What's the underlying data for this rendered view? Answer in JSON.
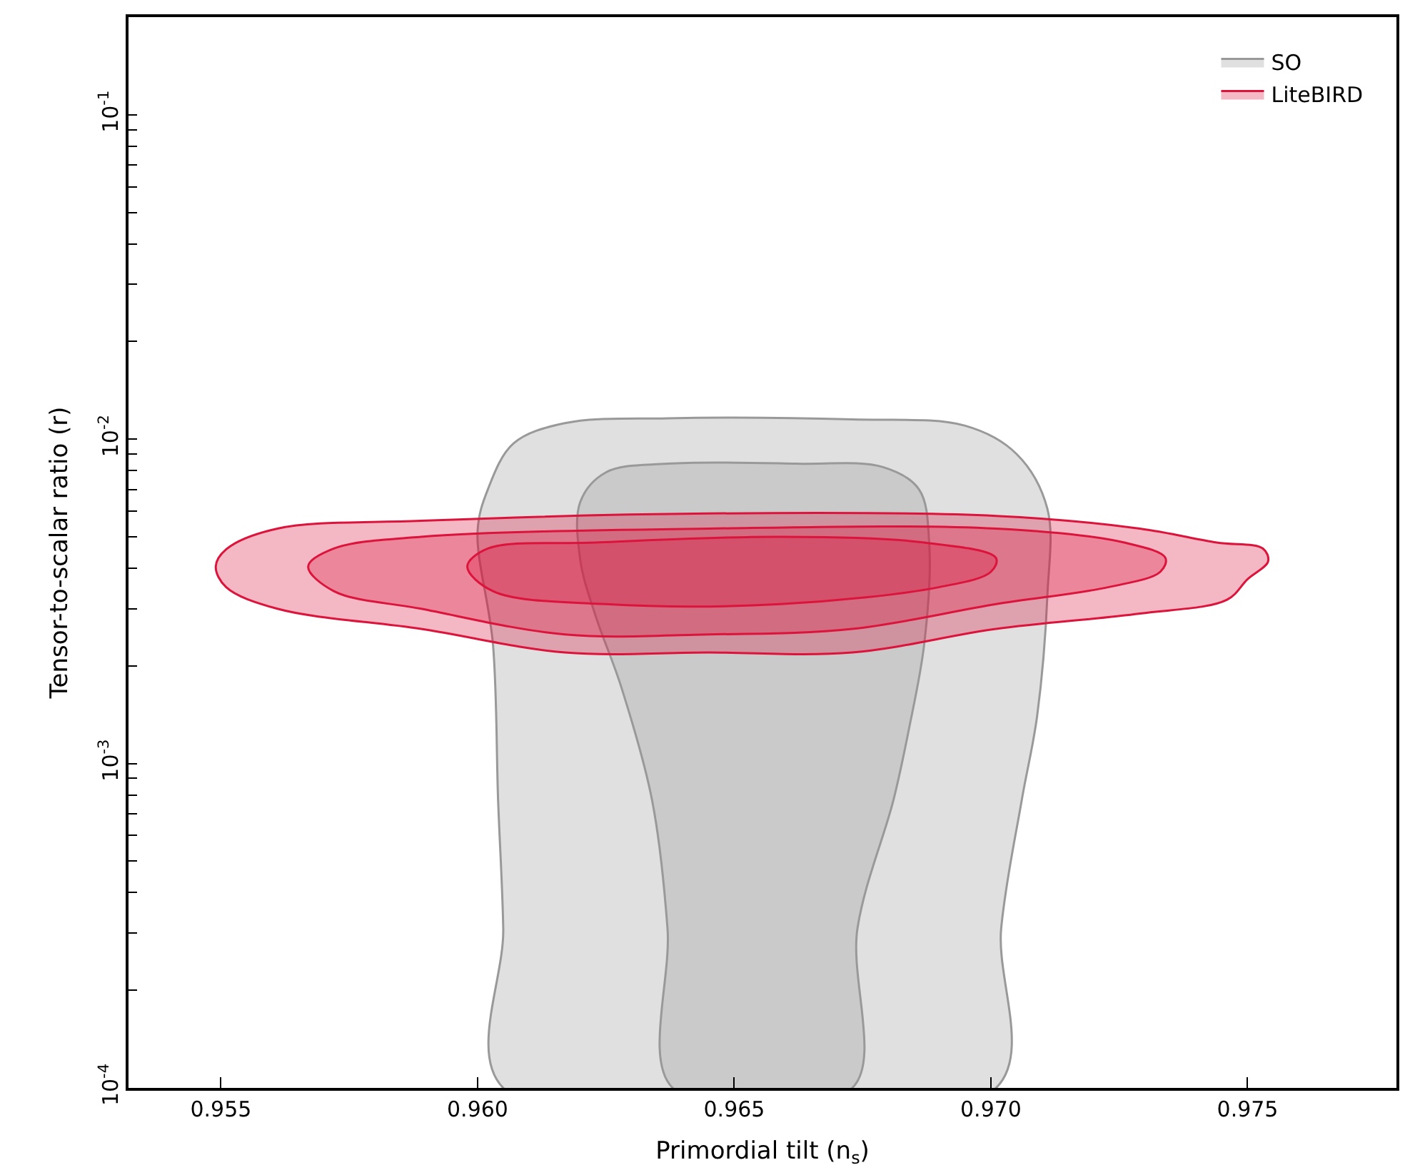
{
  "chart_data": {
    "type": "area",
    "xlabel": "Primordial tilt (n$_{s}$)",
    "ylabel": "Tensor-to-scalar ratio (r)",
    "log": "y",
    "legend": "top right",
    "xlim": [
      0.9532,
      0.9779
    ],
    "xticks": [
      0.955,
      {
        "value": 0.96,
        "label": "0.960"
      },
      0.965,
      {
        "value": 0.97,
        "label": "0.970"
      },
      0.975
    ],
    "ylim": [
      0.0001,
      0.2
    ],
    "yticks": [
      {
        "value": 0.0001,
        "label": "10$^{-4}$"
      },
      {
        "value": 0.0002,
        "label": null
      },
      {
        "value": 0.0003,
        "label": null
      },
      {
        "value": 0.0004,
        "label": null
      },
      {
        "value": 0.0005,
        "label": null
      },
      {
        "value": 0.0006,
        "label": null
      },
      {
        "value": 0.0007,
        "label": null
      },
      {
        "value": 0.0008,
        "label": null
      },
      {
        "value": 0.0009,
        "label": null
      },
      {
        "value": 0.001,
        "label": "10$^{-3}$"
      },
      {
        "value": 0.002,
        "label": null
      },
      {
        "value": 0.003,
        "label": null
      },
      {
        "value": 0.004,
        "label": null
      },
      {
        "value": 0.005,
        "label": null
      },
      {
        "value": 0.006,
        "label": null
      },
      {
        "value": 0.007,
        "label": null
      },
      {
        "value": 0.008,
        "label": null
      },
      {
        "value": 0.009,
        "label": null
      },
      {
        "value": 0.01,
        "label": "10$^{-2}$"
      },
      {
        "value": 0.02,
        "label": null
      },
      {
        "value": 0.03,
        "label": null
      },
      {
        "value": 0.04,
        "label": null
      },
      {
        "value": 0.05,
        "label": null
      },
      {
        "value": 0.06,
        "label": null
      },
      {
        "value": 0.07,
        "label": null
      },
      {
        "value": 0.08,
        "label": null
      },
      {
        "value": 0.09,
        "label": null
      },
      {
        "value": 0.1,
        "label": "10$^{-1}$"
      }
    ],
    "series": [
      {
        "color": "#999999",
        "x": [
          0.9605,
          0.9605,
          0.9604,
          0.9603,
          0.96,
          0.9602,
          0.9607,
          0.9617,
          0.9637,
          0.9673,
          0.9695,
          0.9705,
          0.9711,
          0.9711,
          0.9709,
          0.9706,
          0.9702,
          0.9701
        ],
        "values": [
          0.0001,
          0.00031,
          0.00077,
          0.00233,
          0.0052,
          0.007,
          0.0097,
          0.0112,
          0.0116,
          0.0115,
          0.011,
          0.009,
          0.0061,
          0.0033,
          0.0014,
          0.00077,
          0.00031,
          0.0001
        ]
      },
      {
        "name": "SO",
        "color": "#999999",
        "x": [
          0.9638,
          0.9637,
          0.9634,
          0.9628,
          0.9623,
          0.962,
          0.962,
          0.9625,
          0.9637,
          0.9662,
          0.9679,
          0.9686,
          0.9688,
          0.9687,
          0.9684,
          0.9681,
          0.9674,
          0.9673
        ],
        "values": [
          0.0001,
          0.00031,
          0.00077,
          0.00172,
          0.00285,
          0.00425,
          0.0064,
          0.0079,
          0.0084,
          0.0084,
          0.0082,
          0.007,
          0.0047,
          0.00233,
          0.00127,
          0.00077,
          0.00031,
          0.0001
        ]
      },
      {
        "color": "#dc143c",
        "x": [
          0.9549,
          0.9551,
          0.9561,
          0.9589,
          0.9645,
          0.9701,
          0.9729,
          0.9744,
          0.9753,
          0.9754,
          0.975,
          0.9746,
          0.9729,
          0.9701,
          0.9673,
          0.9645,
          0.9617,
          0.9589,
          0.9561,
          0.9551
        ],
        "values": [
          0.00405,
          0.00457,
          0.0053,
          0.0056,
          0.0059,
          0.0058,
          0.0053,
          0.0048,
          0.0046,
          0.0042,
          0.0037,
          0.0032,
          0.0029,
          0.0026,
          0.0022,
          0.0022,
          0.0022,
          0.0026,
          0.003,
          0.0035
        ]
      },
      {
        "color": "#dc143c",
        "x": [
          0.9567,
          0.9572,
          0.9589,
          0.9645,
          0.9701,
          0.9726,
          0.9734,
          0.9733,
          0.9723,
          0.9701,
          0.9673,
          0.9645,
          0.9617,
          0.9589,
          0.9572
        ],
        "values": [
          0.00405,
          0.0046,
          0.005,
          0.0053,
          0.0053,
          0.0048,
          0.0043,
          0.0039,
          0.0035,
          0.0031,
          0.0026,
          0.0025,
          0.0025,
          0.003,
          0.0034
        ]
      },
      {
        "name": "LiteBIRD",
        "color": "#dc143c",
        "x": [
          0.9598,
          0.9602,
          0.9623,
          0.9659,
          0.9687,
          0.9701,
          0.97,
          0.969,
          0.9659,
          0.9625,
          0.9603
        ],
        "values": [
          0.00405,
          0.0046,
          0.0048,
          0.005,
          0.0048,
          0.0043,
          0.0039,
          0.0035,
          0.0031,
          0.0031,
          0.0034
        ]
      }
    ]
  }
}
